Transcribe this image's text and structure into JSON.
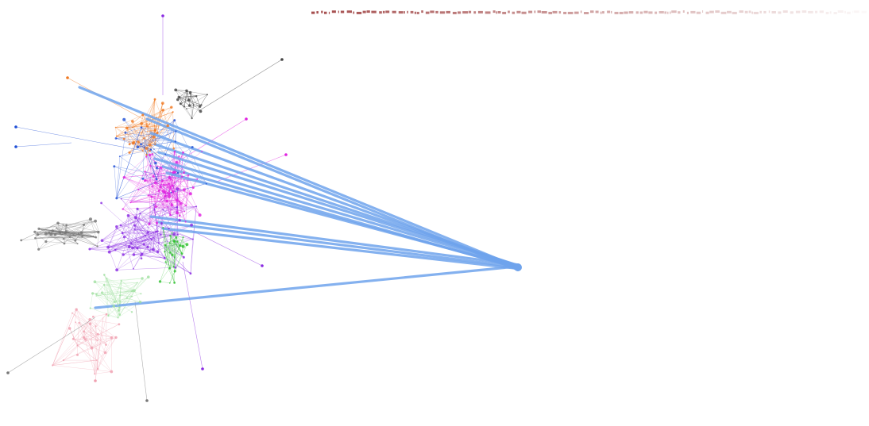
{
  "graph": {
    "community_colors": {
      "blue": "#1f4fd6",
      "orange": "#f07820",
      "magenta": "#e020e0",
      "purple": "#8a2be2",
      "gray": "#777777",
      "green": "#30c030",
      "pink": "#f0a0b0",
      "lightgreen": "#a0e0a0",
      "darkgray": "#444444"
    },
    "highlight_edge_color": "#6fa3ec",
    "header_strip_color": "#9b3a3a"
  }
}
